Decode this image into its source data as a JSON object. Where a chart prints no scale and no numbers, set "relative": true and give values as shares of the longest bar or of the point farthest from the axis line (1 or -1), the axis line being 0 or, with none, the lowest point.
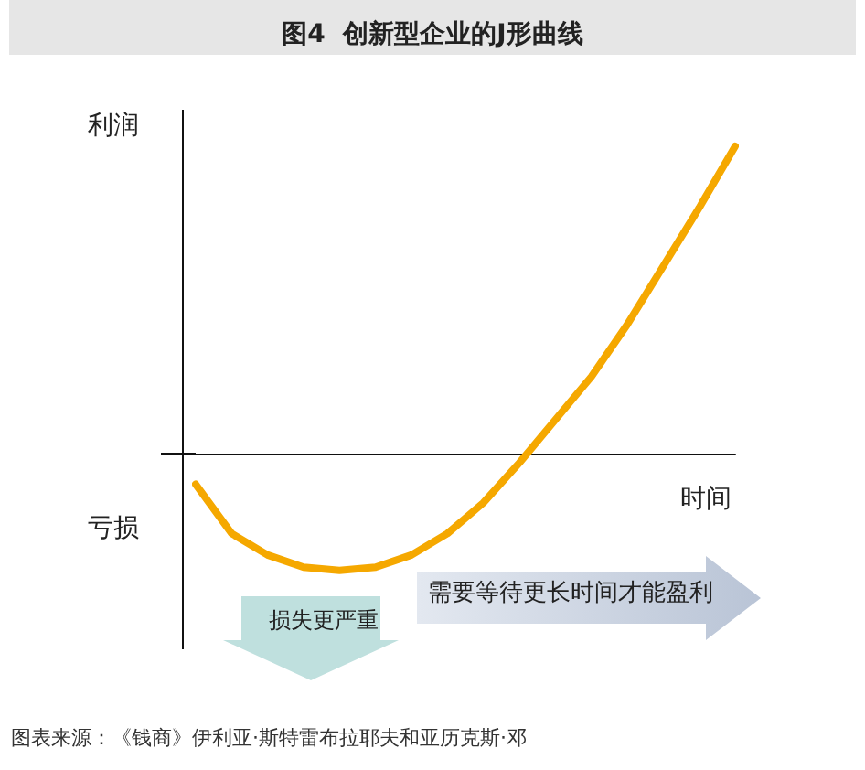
{
  "chart_data": {
    "type": "line",
    "title": "图4  创新型企业的J形曲线",
    "xlabel": "时间",
    "ylabel": "利润",
    "relative": true,
    "marker": "none",
    "categories": [
      null,
      null,
      null,
      null,
      null,
      null,
      null,
      null,
      null,
      null,
      null,
      null,
      null,
      null,
      null,
      null
    ],
    "series": [
      {
        "color": "#f5a800",
        "values": [
          -0.1,
          -0.26,
          -0.33,
          -0.37,
          -0.38,
          -0.37,
          -0.33,
          -0.26,
          -0.16,
          -0.03,
          0.11,
          0.25,
          0.42,
          0.61,
          0.8,
          1
        ]
      }
    ],
    "annotations": [
      "亏损",
      "损失更严重",
      "需要等待更长时间才能盈利",
      "图表来源：《钱商》伊利亚·斯特雷布拉耶夫和亚历克斯·邓"
    ]
  }
}
